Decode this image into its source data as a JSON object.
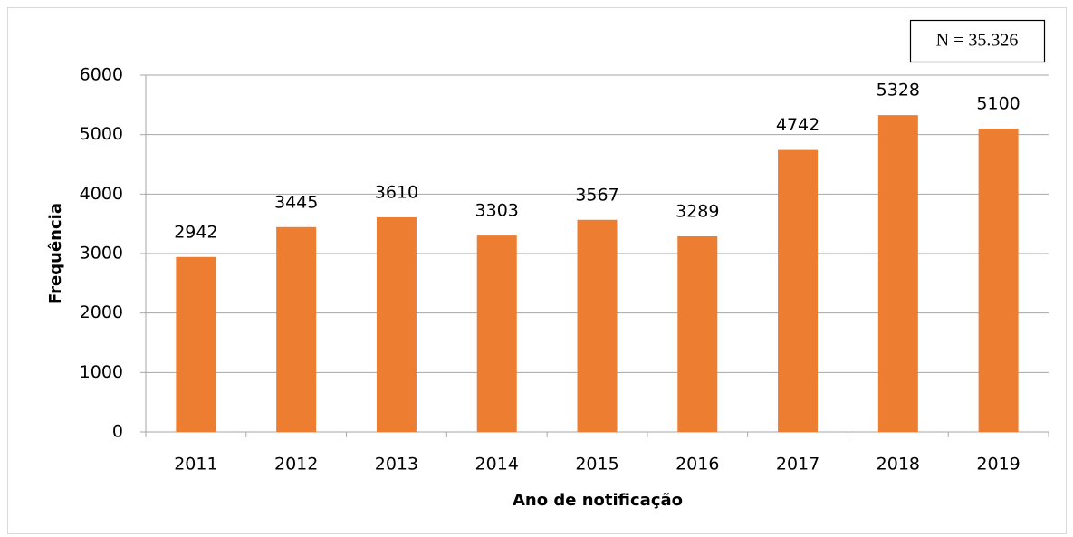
{
  "chart_data": {
    "type": "bar",
    "annotation": "N = 35.326",
    "xlabel": "Ano de notificação",
    "ylabel": "Frequência",
    "categories": [
      "2011",
      "2012",
      "2013",
      "2014",
      "2015",
      "2016",
      "2017",
      "2018",
      "2019"
    ],
    "values": [
      2942,
      3445,
      3610,
      3303,
      3567,
      3289,
      4742,
      5328,
      5100
    ],
    "color": "#ed7d31",
    "ylim": [
      0,
      6000
    ],
    "yticks": [
      0,
      1000,
      2000,
      3000,
      4000,
      5000,
      6000
    ],
    "grid": true
  }
}
